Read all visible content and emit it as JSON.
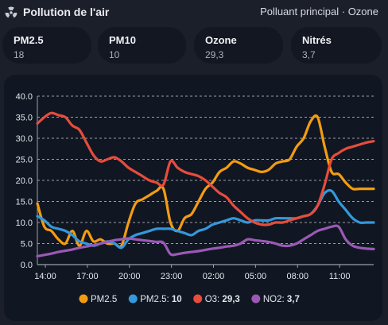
{
  "header": {
    "title": "Pollution de l'air",
    "right_label": "Polluant principal · Ozone",
    "icon": "radiation-icon"
  },
  "cards": [
    {
      "label": "PM2.5",
      "value": "18"
    },
    {
      "label": "PM10",
      "value": "10"
    },
    {
      "label": "Ozone",
      "value": "29,3"
    },
    {
      "label": "Nitrés",
      "value": "3,7"
    }
  ],
  "chart_data": {
    "type": "line",
    "title": "",
    "xlabel": "",
    "ylabel": "",
    "ylim": [
      0,
      40
    ],
    "yticks": [
      "0.0",
      "5.0",
      "10.0",
      "15.0",
      "20.0",
      "25.0",
      "30.0",
      "35.0",
      "40.0"
    ],
    "xlim": [
      0,
      24
    ],
    "xticks": [
      {
        "x": 0,
        "label": "14:00"
      },
      {
        "x": 3,
        "label": "17:00"
      },
      {
        "x": 6,
        "label": "20:00"
      },
      {
        "x": 9,
        "label": "23:00"
      },
      {
        "x": 12,
        "label": "02:00"
      },
      {
        "x": 15,
        "label": "05:00"
      },
      {
        "x": 18,
        "label": "08:00"
      },
      {
        "x": 21,
        "label": "11:00"
      }
    ],
    "grid": true,
    "legend_position": "bottom",
    "series": [
      {
        "name": "PM2.5",
        "legend_text": "PM2.5",
        "color": "#f39c12",
        "x": [
          0,
          0.5,
          1,
          1.5,
          2,
          2.5,
          3,
          3.5,
          4,
          4.5,
          5,
          5.5,
          6,
          6.5,
          7,
          7.5,
          8,
          8.5,
          9,
          9.5,
          10,
          10.5,
          11,
          11.5,
          12,
          12.5,
          13,
          13.5,
          14,
          14.5,
          15,
          15.5,
          16,
          16.5,
          17,
          17.5,
          18,
          18.5,
          19,
          19.5,
          20,
          20.5,
          21,
          21.5,
          22,
          22.5,
          23,
          23.5,
          24
        ],
        "values": [
          14.5,
          9,
          8,
          6,
          5,
          8,
          4.5,
          8,
          5.5,
          6,
          5,
          5,
          4.5,
          10,
          14.5,
          15.5,
          16.5,
          17.5,
          18,
          10,
          8,
          11,
          12,
          15,
          18,
          19.5,
          22,
          23,
          24.5,
          24,
          23,
          22.5,
          22,
          22.5,
          24,
          24.5,
          25,
          28,
          30,
          34,
          35,
          28,
          22,
          21.5,
          19.5,
          18,
          18,
          18,
          18
        ]
      },
      {
        "name": "PM2.5",
        "legend_text": "PM2.5: ",
        "legend_value": "10",
        "color": "#3498db",
        "x": [
          0,
          0.5,
          1,
          1.5,
          2,
          2.5,
          3,
          3.5,
          4,
          4.5,
          5,
          5.5,
          6,
          6.5,
          7,
          7.5,
          8,
          8.5,
          9,
          9.5,
          10,
          10.5,
          11,
          11.5,
          12,
          12.5,
          13,
          13.5,
          14,
          14.5,
          15,
          15.5,
          16,
          16.5,
          17,
          17.5,
          18,
          18.5,
          19,
          19.5,
          20,
          20.5,
          21,
          21.5,
          22,
          22.5,
          23,
          23.5,
          24
        ],
        "values": [
          11.5,
          10.5,
          9,
          8.5,
          8,
          7,
          5.5,
          5,
          4.5,
          5,
          5.5,
          5,
          4,
          6,
          7,
          7.5,
          8,
          8.5,
          8.5,
          8.5,
          8,
          7.5,
          7,
          8,
          8.5,
          9.5,
          10,
          10.5,
          11,
          10.5,
          10,
          10.5,
          10.5,
          10.5,
          11,
          11,
          11,
          11,
          11.5,
          12,
          14,
          17,
          17.5,
          15,
          13,
          11,
          10,
          10,
          10
        ]
      },
      {
        "name": "O3",
        "legend_text": "O3: ",
        "legend_value": "29,3",
        "color": "#e74c3c",
        "x": [
          0,
          0.5,
          1,
          1.5,
          2,
          2.5,
          3,
          3.5,
          4,
          4.5,
          5,
          5.5,
          6,
          6.5,
          7,
          7.5,
          8,
          8.5,
          9,
          9.5,
          10,
          10.5,
          11,
          11.5,
          12,
          12.5,
          13,
          13.5,
          14,
          14.5,
          15,
          15.5,
          16,
          16.5,
          17,
          17.5,
          18,
          18.5,
          19,
          19.5,
          20,
          20.5,
          21,
          21.5,
          22,
          22.5,
          23,
          23.5,
          24
        ],
        "values": [
          33.5,
          35,
          36,
          35.5,
          35,
          33,
          32,
          29,
          26,
          24.5,
          25,
          25.5,
          24.5,
          23,
          22,
          21,
          20,
          19.5,
          19,
          24.5,
          23,
          22,
          21.5,
          21,
          20,
          18.5,
          17,
          16,
          14,
          12.5,
          11,
          10,
          9.5,
          9.5,
          10,
          10,
          10.5,
          11,
          11.5,
          12,
          14,
          19,
          25,
          26.5,
          27.5,
          28,
          28.5,
          29,
          29.3
        ]
      },
      {
        "name": "NO2",
        "legend_text": "NO2: ",
        "legend_value": "3,7",
        "color": "#9b59b6",
        "x": [
          0,
          0.5,
          1,
          1.5,
          2,
          2.5,
          3,
          3.5,
          4,
          4.5,
          5,
          5.5,
          6,
          6.5,
          7,
          7.5,
          8,
          8.5,
          9,
          9.5,
          10,
          10.5,
          11,
          11.5,
          12,
          12.5,
          13,
          13.5,
          14,
          14.5,
          15,
          15.5,
          16,
          16.5,
          17,
          17.5,
          18,
          18.5,
          19,
          19.5,
          20,
          20.5,
          21,
          21.5,
          22,
          22.5,
          23,
          23.5,
          24
        ],
        "values": [
          2,
          2.3,
          2.6,
          3,
          3.3,
          3.6,
          4,
          4.3,
          4.6,
          5,
          5.4,
          5.8,
          6,
          6.2,
          6,
          5.8,
          5.6,
          5.4,
          5.2,
          2.5,
          2.5,
          2.8,
          3,
          3.2,
          3.5,
          3.8,
          4,
          4.3,
          4.5,
          5,
          6,
          5.8,
          5.6,
          5.4,
          5,
          4.5,
          4.5,
          5,
          6,
          7,
          8,
          8.5,
          9,
          9,
          6,
          4.5,
          4,
          3.8,
          3.7
        ]
      }
    ]
  }
}
